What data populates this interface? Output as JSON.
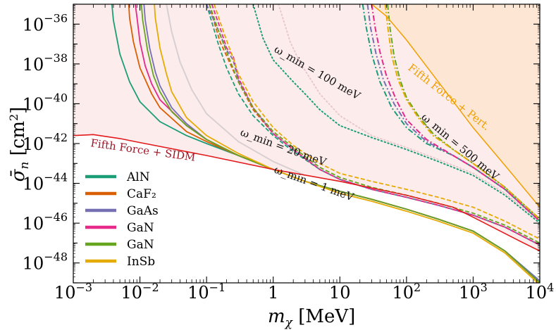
{
  "chart_data": {
    "type": "line",
    "title": "",
    "xlabel": "m_χ [MeV]",
    "ylabel": "σ̄_n [cm²]",
    "xscale": "log",
    "yscale": "log",
    "xlim": [
      0.001,
      10000
    ],
    "ylim": [
      1e-49,
      1e-35
    ],
    "x_tick_labels": [
      "10^-3",
      "10^-2",
      "10^-1",
      "1",
      "10",
      "10^2",
      "10^3",
      "10^4"
    ],
    "y_tick_labels": [
      "10^-36",
      "10^-38",
      "10^-40",
      "10^-42",
      "10^-44",
      "10^-46",
      "10^-48"
    ],
    "legend": {
      "placement": "lower-left",
      "entries": [
        "AlN",
        "CaF₂",
        "GaAs",
        "GaN",
        "GaN",
        "InSb"
      ]
    },
    "colors": {
      "AlN": "#1b9e77",
      "CaF2": "#d95f02",
      "GaAs": "#7570b3",
      "GaN_pink": "#e7298a",
      "GaN_green": "#66a61e",
      "InSb": "#e6ab02",
      "sidm": "#e31a1c",
      "fifth_force_pert": "#f0a000",
      "shade_sidm": "#fdecec",
      "shade_pert": "#fde6d4"
    },
    "annotations": {
      "fifth_force_sidm": "Fifth Force + SIDM",
      "fifth_force_pert": "Fifth Force + Pert.",
      "w100": "ω_min = 100 meV",
      "w500": "ω_min = 500 meV",
      "w20": "ω_min = 20 meV",
      "w1": "ω_min = 1 meV"
    },
    "fifth_force_sidm": {
      "x": [
        0.001,
        0.002,
        0.005,
        0.01,
        0.1,
        1,
        10,
        100,
        500,
        1000,
        5000,
        10000
      ],
      "y": [
        -41.6,
        -41.55,
        -41.75,
        -41.95,
        -42.6,
        -43.3,
        -43.9,
        -44.6,
        -45.2,
        -45.7,
        -46.9,
        -47.4
      ]
    },
    "fifth_force_pert": {
      "x": [
        30,
        50,
        100,
        300,
        1000,
        3000,
        10000
      ],
      "y": [
        -35,
        -35.6,
        -36.8,
        -38.9,
        -41.2,
        -43.1,
        -45.2
      ]
    },
    "series_1meV": [
      {
        "name": "AlN",
        "x": [
          0.0038,
          0.004,
          0.005,
          0.007,
          0.01,
          0.02,
          0.05,
          0.1,
          0.3,
          1,
          3,
          10,
          30,
          100,
          300,
          1000,
          3000,
          10000
        ],
        "y": [
          -35.0,
          -35.8,
          -37.5,
          -38.9,
          -39.9,
          -40.9,
          -41.6,
          -42.0,
          -42.6,
          -43.3,
          -43.9,
          -44.4,
          -44.8,
          -45.3,
          -45.8,
          -46.4,
          -47.4,
          -48.9
        ]
      },
      {
        "name": "CaF₂",
        "x": [
          0.0068,
          0.007,
          0.008,
          0.01,
          0.015,
          0.02,
          0.05,
          0.1,
          0.3,
          1,
          3,
          10,
          30,
          100,
          300,
          1000,
          3000,
          10000
        ],
        "y": [
          -35.0,
          -35.7,
          -36.9,
          -38.2,
          -39.5,
          -40.2,
          -41.4,
          -41.9,
          -42.6,
          -43.3,
          -43.9,
          -44.4,
          -44.8,
          -45.3,
          -45.8,
          -46.4,
          -47.4,
          -49.0
        ]
      },
      {
        "name": "GaAs",
        "x": [
          0.0115,
          0.012,
          0.014,
          0.017,
          0.02,
          0.03,
          0.05,
          0.1,
          0.3,
          1,
          3,
          10,
          30,
          100,
          300,
          1000,
          3000,
          10000
        ],
        "y": [
          -35.0,
          -35.8,
          -37.2,
          -38.4,
          -39.1,
          -40.2,
          -41.0,
          -41.8,
          -42.6,
          -43.3,
          -43.9,
          -44.4,
          -44.8,
          -45.3,
          -45.8,
          -46.4,
          -47.4,
          -48.9
        ]
      },
      {
        "name": "GaN",
        "x": [
          0.0085,
          0.009,
          0.01,
          0.012,
          0.015,
          0.02,
          0.05,
          0.1,
          0.3,
          1,
          3,
          10,
          30,
          100,
          300,
          1000,
          3000,
          10000
        ],
        "y": [
          -35.0,
          -35.6,
          -36.9,
          -38.1,
          -39.0,
          -39.8,
          -41.1,
          -41.8,
          -42.6,
          -43.3,
          -43.9,
          -44.4,
          -44.8,
          -45.3,
          -45.8,
          -46.4,
          -47.4,
          -49.0
        ]
      },
      {
        "name": "GaN",
        "x": [
          0.0105,
          0.011,
          0.013,
          0.016,
          0.02,
          0.03,
          0.05,
          0.1,
          0.3,
          1,
          3,
          10,
          30,
          100,
          300,
          1000,
          3000,
          10000
        ],
        "y": [
          -35.0,
          -35.8,
          -37.3,
          -38.6,
          -39.4,
          -40.4,
          -41.1,
          -41.8,
          -42.6,
          -43.3,
          -43.9,
          -44.4,
          -44.8,
          -45.3,
          -45.8,
          -46.4,
          -47.4,
          -49.0
        ]
      },
      {
        "name": "InSb",
        "x": [
          0.0165,
          0.017,
          0.02,
          0.025,
          0.03,
          0.05,
          0.1,
          0.3,
          1,
          3,
          10,
          30,
          100,
          300,
          1000,
          3000,
          10000
        ],
        "y": [
          -35.0,
          -35.7,
          -37.2,
          -38.5,
          -39.4,
          -40.7,
          -41.6,
          -42.5,
          -43.3,
          -43.9,
          -44.5,
          -44.9,
          -45.4,
          -45.9,
          -46.5,
          -47.5,
          -49.1
        ]
      }
    ],
    "series_20meV": [
      {
        "name": "AlN",
        "x": [
          0.1,
          0.12,
          0.15,
          0.2,
          0.3,
          0.5,
          1,
          2,
          5,
          10,
          30,
          100,
          300,
          1000,
          3000,
          10000
        ],
        "y": [
          -35.0,
          -35.9,
          -37.0,
          -38.2,
          -39.5,
          -40.6,
          -41.6,
          -42.4,
          -43.3,
          -43.8,
          -44.3,
          -44.7,
          -45.1,
          -45.6,
          -46.2,
          -47.1
        ]
      },
      {
        "name": "CaF₂",
        "x": [
          0.11,
          0.13,
          0.16,
          0.2,
          0.3,
          0.5,
          1,
          2,
          5,
          10,
          30,
          100,
          300,
          1000,
          3000,
          10000
        ],
        "y": [
          -35.0,
          -35.9,
          -36.9,
          -37.6,
          -38.9,
          -40.3,
          -41.5,
          -42.3,
          -43.3,
          -43.8,
          -44.3,
          -44.7,
          -45.1,
          -45.6,
          -46.2,
          -47.1
        ]
      },
      {
        "name": "GaAs",
        "x": [
          0.1,
          0.15,
          0.2,
          0.25,
          0.3,
          0.5,
          1,
          2,
          5,
          10,
          30,
          100,
          300,
          1000,
          3000,
          10000
        ],
        "y": [
          -35.0,
          -36.3,
          -37.3,
          -37.8,
          -38.8,
          -40.2,
          -41.5,
          -42.3,
          -43.3,
          -43.8,
          -44.3,
          -44.7,
          -45.1,
          -45.6,
          -46.2,
          -47.1
        ]
      },
      {
        "name": "GaN",
        "x": [
          0.12,
          0.16,
          0.2,
          0.25,
          0.3,
          0.5,
          1,
          2,
          5,
          10,
          30,
          100,
          300,
          1000,
          3000,
          10000
        ],
        "y": [
          -35.0,
          -36.2,
          -37.2,
          -37.6,
          -38.7,
          -40.2,
          -41.5,
          -42.3,
          -43.3,
          -43.8,
          -44.3,
          -44.7,
          -45.1,
          -45.6,
          -46.2,
          -47.1
        ]
      },
      {
        "name": "GaN",
        "x": [
          0.11,
          0.15,
          0.2,
          0.3,
          0.5,
          1,
          2,
          5,
          10,
          30,
          100,
          300,
          1000,
          3000,
          10000
        ],
        "y": [
          -35.0,
          -36.3,
          -37.4,
          -38.9,
          -40.2,
          -41.4,
          -42.2,
          -43.2,
          -43.7,
          -44.2,
          -44.6,
          -45.0,
          -45.5,
          -46.1,
          -47.0
        ]
      },
      {
        "name": "InSb",
        "x": [
          0.13,
          0.18,
          0.25,
          0.3,
          0.5,
          1,
          2,
          5,
          10,
          30,
          100,
          300,
          1000,
          3000,
          10000
        ],
        "y": [
          -35.0,
          -36.4,
          -37.7,
          -38.5,
          -39.9,
          -41.2,
          -42.1,
          -43.0,
          -43.5,
          -43.9,
          -44.3,
          -44.7,
          -45.2,
          -45.9,
          -46.8
        ]
      }
    ],
    "series_100meV_dotted": [
      {
        "name": "AlN",
        "x": [
          0.5,
          0.7,
          1,
          2,
          3,
          5,
          10,
          30,
          100,
          300,
          1000,
          3000,
          10000
        ],
        "y": [
          -35.0,
          -36.7,
          -37.8,
          -38.9,
          -39.5,
          -40.3,
          -41.1,
          -41.7,
          -42.3,
          -42.9,
          -43.6,
          -44.6,
          -46.0
        ]
      },
      {
        "name": "CaF₂",
        "x": [
          1.2,
          1.8,
          2.5,
          5,
          10,
          30,
          100,
          300,
          1000,
          3000,
          10000
        ],
        "y": [
          -35.0,
          -36.9,
          -37.9,
          -39.5,
          -40.6,
          -41.6,
          -42.2,
          -42.8,
          -43.5,
          -44.5,
          -45.9
        ]
      }
    ],
    "series_500meV": [
      {
        "name": "AlN",
        "x": [
          22,
          25,
          30,
          40,
          60,
          100,
          200,
          500,
          1000,
          3000,
          10000
        ],
        "y": [
          -35.0,
          -36.2,
          -37.5,
          -38.9,
          -40.2,
          -41.2,
          -42.0,
          -42.6,
          -43.2,
          -44.3,
          -45.9
        ]
      },
      {
        "name": "GaAs",
        "x": [
          26,
          29,
          35,
          45,
          65,
          100,
          200,
          500,
          1000,
          3000,
          10000
        ],
        "y": [
          -35.0,
          -36.2,
          -37.5,
          -38.8,
          -40.0,
          -41.0,
          -41.9,
          -42.6,
          -43.2,
          -44.3,
          -45.9
        ]
      },
      {
        "name": "GaN",
        "x": [
          30,
          34,
          40,
          50,
          70,
          100,
          200,
          500,
          1000,
          3000,
          10000
        ],
        "y": [
          -35.0,
          -36.2,
          -37.4,
          -38.6,
          -39.8,
          -40.8,
          -41.8,
          -42.6,
          -43.2,
          -44.3,
          -45.9
        ]
      },
      {
        "name": "GaN",
        "x": [
          52,
          57,
          65,
          80,
          100,
          150,
          250,
          500,
          1000,
          3000,
          10000
        ],
        "y": [
          -35.0,
          -36.3,
          -37.6,
          -38.8,
          -39.7,
          -40.6,
          -41.5,
          -42.3,
          -43.0,
          -44.2,
          -45.8
        ]
      },
      {
        "name": "InSb",
        "x": [
          48,
          53,
          60,
          75,
          100,
          150,
          250,
          500,
          1000,
          3000,
          10000
        ],
        "y": [
          -35.0,
          -36.3,
          -37.6,
          -38.8,
          -39.8,
          -40.7,
          -41.6,
          -42.3,
          -43.0,
          -44.2,
          -45.8
        ]
      }
    ]
  }
}
